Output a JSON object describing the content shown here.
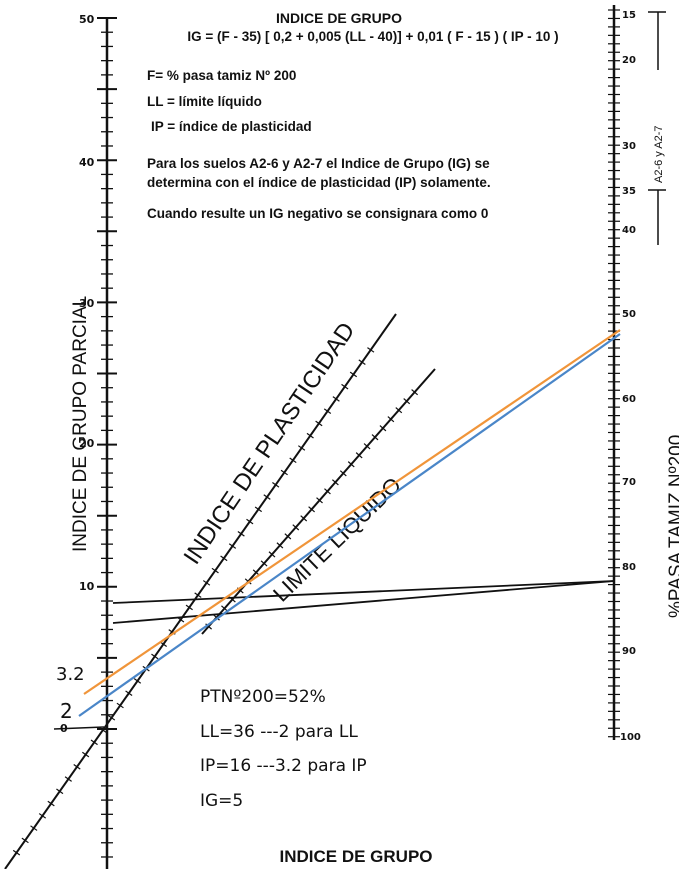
{
  "header": {
    "title": "INDICE DE GRUPO",
    "formula": "IG = (F - 35) [ 0,2 + 0,005 (LL - 40)] + 0,01 ( F - 15 ) ( IP - 10 )"
  },
  "legend": {
    "f": "F= % pasa tamiz Nº 200",
    "ll": "LL = límite líquido",
    "ip": "IP = índice de plasticidad"
  },
  "notes": {
    "line1": "Para los suelos A2-6 y A2-7 el Indice de Grupo (IG) se",
    "line2": "determina con el índice de plasticidad (IP) solamente.",
    "line3": "Cuando resulte un IG negativo se consignara como 0"
  },
  "axes": {
    "left_label": "INDICE DE GRUPO PARCIAL",
    "right_label": "%PASA TAMIZ Nº200",
    "bottom_label": "INDICE DE GRUPO",
    "ip_scale_label": "INDICE DE PLASTICIDAD",
    "ll_scale_label": "LIMITE LIQUIDO",
    "a26_label": "A2-6 y A2-7",
    "left_ticks": [
      "50",
      "40",
      "30",
      "20",
      "10",
      "0"
    ],
    "right_ticks": [
      "15",
      "20",
      "30",
      "35",
      "40",
      "50",
      "60",
      "70",
      "80",
      "90",
      "100"
    ]
  },
  "annotations": {
    "val_ip": "3.2",
    "val_ll": "2",
    "ptn": "PTNº200=52%",
    "ll_result": "LL=36 ---2 para LL",
    "ip_result": "IP=16 ---3.2 para IP",
    "ig_result": "IG=5"
  },
  "colors": {
    "ink": "#111111",
    "orange_line": "#f0953a",
    "blue_line": "#4a86c8"
  }
}
